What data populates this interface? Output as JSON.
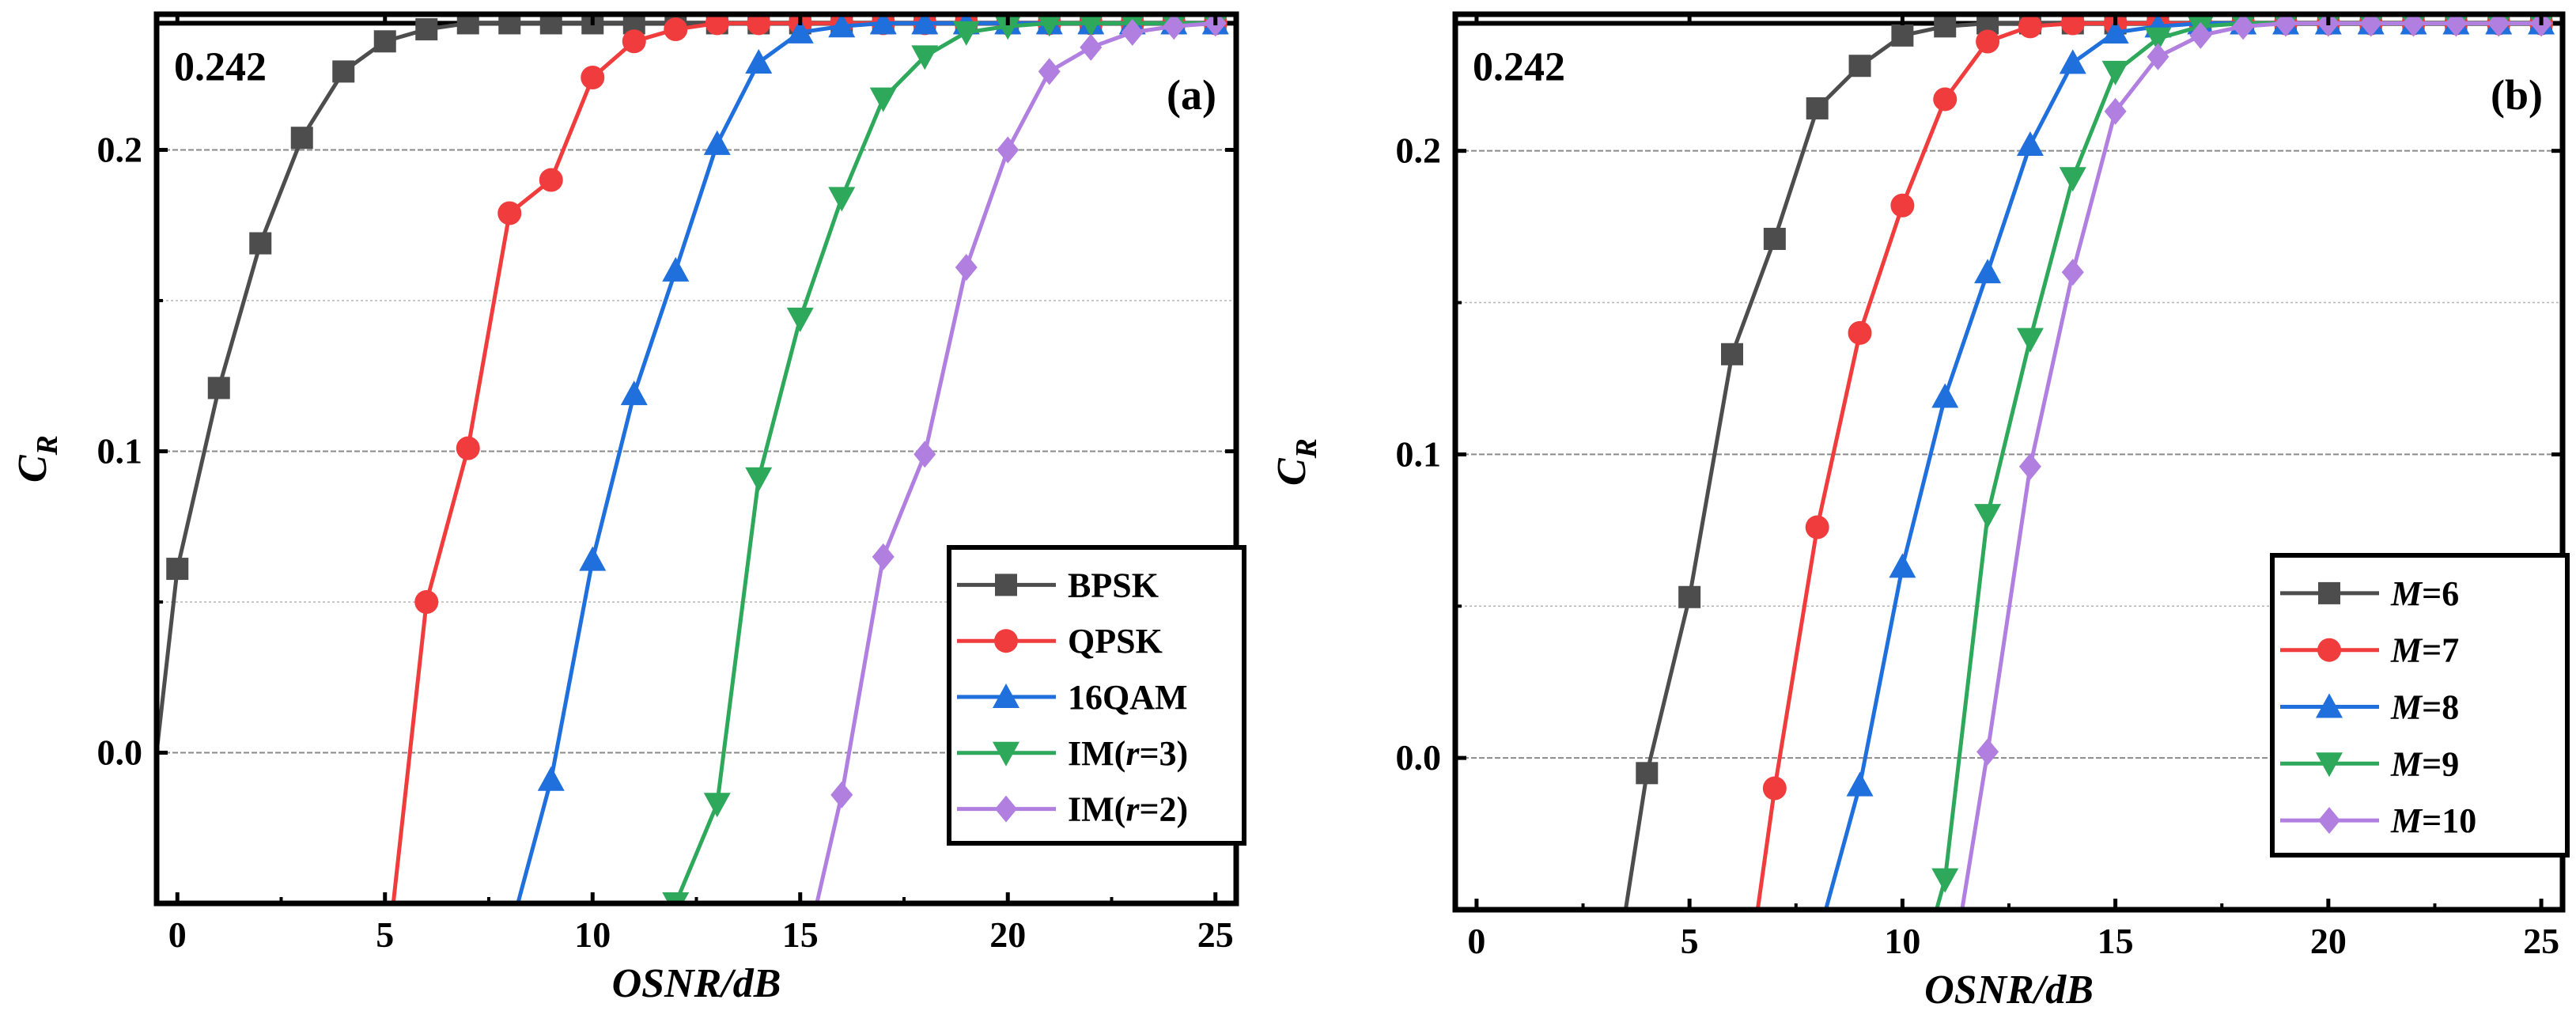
{
  "chart_data": [
    {
      "type": "line",
      "panel_label": "(a)",
      "xlabel": "OSNR/dB",
      "ylabel_main": "C",
      "ylabel_sub": "R",
      "xlim": [
        -0.5,
        25.5
      ],
      "ylim": [
        -0.05,
        0.245
      ],
      "xticks": [
        0,
        5,
        10,
        15,
        20,
        25
      ],
      "yticks": [
        0.0,
        0.1,
        0.2
      ],
      "ytick_labels": [
        "0.0",
        "0.1",
        "0.2"
      ],
      "xtick_labels": [
        "0",
        "5",
        "10",
        "15",
        "20",
        "25"
      ],
      "reference_line": {
        "y": 0.242,
        "label": "0.242"
      },
      "legend_position": "bottom-right",
      "series": [
        {
          "name": "BPSK",
          "name_parts": [
            "BPSK"
          ],
          "color": "#4d4d4d",
          "marker": "square",
          "x": [
            -0.5,
            0,
            1,
            2,
            3,
            4,
            5,
            6,
            7,
            8,
            9,
            10,
            11,
            12,
            13,
            14,
            15,
            16,
            17,
            18,
            19,
            20,
            21,
            22,
            23,
            24,
            25
          ],
          "y": [
            0.0,
            0.061,
            0.121,
            0.169,
            0.204,
            0.226,
            0.236,
            0.24,
            0.242,
            0.242,
            0.242,
            0.242,
            0.242,
            0.242,
            0.242,
            0.242,
            0.242,
            0.242,
            0.242,
            0.242,
            0.242,
            0.242,
            0.242,
            0.242,
            0.242,
            0.242,
            0.242
          ],
          "markers_from": 1
        },
        {
          "name": "QPSK",
          "name_parts": [
            "QPSK"
          ],
          "color": "#f03c3c",
          "marker": "circle",
          "x": [
            5.2,
            6,
            7,
            8,
            9,
            10,
            11,
            12,
            13,
            14,
            15,
            16,
            17,
            18,
            19,
            20,
            21,
            22,
            23,
            24,
            25
          ],
          "y": [
            -0.05,
            0.05,
            0.101,
            0.179,
            0.19,
            0.224,
            0.236,
            0.24,
            0.242,
            0.242,
            0.242,
            0.242,
            0.242,
            0.242,
            0.242,
            0.242,
            0.242,
            0.242,
            0.242,
            0.242,
            0.242
          ],
          "markers_from": 1
        },
        {
          "name": "16QAM",
          "name_parts": [
            "16QAM"
          ],
          "color": "#1f6fdc",
          "marker": "triangle-up",
          "x": [
            8.2,
            9,
            10,
            11,
            12,
            13,
            14,
            15,
            16,
            17,
            18,
            19,
            20,
            21,
            22,
            23,
            24,
            25
          ],
          "y": [
            -0.05,
            -0.009,
            0.064,
            0.119,
            0.16,
            0.202,
            0.229,
            0.239,
            0.241,
            0.242,
            0.242,
            0.242,
            0.242,
            0.242,
            0.242,
            0.242,
            0.242,
            0.242
          ],
          "markers_from": 1
        },
        {
          "name": "IM(r=3)",
          "name_parts": [
            "IM(",
            "r",
            "=3)"
          ],
          "color": "#2ea85a",
          "marker": "triangle-down",
          "x": [
            12,
            13,
            14,
            15,
            16,
            17,
            18,
            19,
            20,
            21,
            22,
            23,
            24,
            25
          ],
          "y": [
            -0.05,
            -0.017,
            0.091,
            0.144,
            0.184,
            0.217,
            0.231,
            0.239,
            0.241,
            0.242,
            0.242,
            0.242,
            0.242,
            0.242
          ],
          "markers_from": 0
        },
        {
          "name": "IM(r=2)",
          "name_parts": [
            "IM(",
            "r",
            "=2)"
          ],
          "color": "#b07fe0",
          "marker": "diamond",
          "x": [
            15.4,
            16,
            17,
            18,
            19,
            20,
            21,
            22,
            23,
            24,
            25
          ],
          "y": [
            -0.05,
            -0.014,
            0.065,
            0.099,
            0.161,
            0.2,
            0.226,
            0.234,
            0.239,
            0.241,
            0.242
          ],
          "markers_from": 1
        }
      ]
    },
    {
      "type": "line",
      "panel_label": "(b)",
      "xlabel": "OSNR/dB",
      "ylabel_main": "C",
      "ylabel_sub": "R",
      "xlim": [
        -0.5,
        25.5
      ],
      "ylim": [
        -0.05,
        0.245
      ],
      "xticks": [
        0,
        5,
        10,
        15,
        20,
        25
      ],
      "yticks": [
        0.0,
        0.1,
        0.2
      ],
      "ytick_labels": [
        "0.0",
        "0.1",
        "0.2"
      ],
      "xtick_labels": [
        "0",
        "5",
        "10",
        "15",
        "20",
        "25"
      ],
      "reference_line": {
        "y": 0.242,
        "label": "0.242"
      },
      "legend_position": "bottom-right",
      "series": [
        {
          "name": "M=6",
          "name_parts": [
            "",
            "M",
            "=6"
          ],
          "color": "#4d4d4d",
          "marker": "square",
          "x": [
            3.5,
            4,
            5,
            6,
            7,
            8,
            9,
            10,
            11,
            12,
            13,
            14,
            15,
            16,
            17,
            18,
            19,
            20,
            21,
            22,
            23,
            24,
            25
          ],
          "y": [
            -0.05,
            -0.005,
            0.053,
            0.133,
            0.171,
            0.214,
            0.228,
            0.238,
            0.241,
            0.242,
            0.242,
            0.242,
            0.242,
            0.242,
            0.242,
            0.242,
            0.242,
            0.242,
            0.242,
            0.242,
            0.242,
            0.242,
            0.242
          ],
          "markers_from": 1
        },
        {
          "name": "M=7",
          "name_parts": [
            "",
            "M",
            "=7"
          ],
          "color": "#f03c3c",
          "marker": "circle",
          "x": [
            6.6,
            7,
            8,
            9,
            10,
            11,
            12,
            13,
            14,
            15,
            16,
            17,
            18,
            19,
            20,
            21,
            22,
            23,
            24,
            25
          ],
          "y": [
            -0.05,
            -0.01,
            0.076,
            0.14,
            0.182,
            0.217,
            0.236,
            0.241,
            0.242,
            0.242,
            0.242,
            0.242,
            0.242,
            0.242,
            0.242,
            0.242,
            0.242,
            0.242,
            0.242,
            0.242
          ],
          "markers_from": 1
        },
        {
          "name": "M=8",
          "name_parts": [
            "",
            "M",
            "=8"
          ],
          "color": "#1f6fdc",
          "marker": "triangle-up",
          "x": [
            8.2,
            9,
            10,
            11,
            12,
            13,
            14,
            15,
            16,
            17,
            18,
            19,
            20,
            21,
            22,
            23,
            24,
            25
          ],
          "y": [
            -0.05,
            -0.009,
            0.063,
            0.119,
            0.16,
            0.202,
            0.229,
            0.239,
            0.241,
            0.242,
            0.242,
            0.242,
            0.242,
            0.242,
            0.242,
            0.242,
            0.242,
            0.242
          ],
          "markers_from": 1
        },
        {
          "name": "M=9",
          "name_parts": [
            "",
            "M",
            "=9"
          ],
          "color": "#2ea85a",
          "marker": "triangle-down",
          "x": [
            10.8,
            11,
            12,
            13,
            14,
            15,
            16,
            17,
            18,
            19,
            20,
            21,
            22,
            23,
            24,
            25
          ],
          "y": [
            -0.05,
            -0.04,
            0.08,
            0.138,
            0.191,
            0.226,
            0.237,
            0.241,
            0.242,
            0.242,
            0.242,
            0.242,
            0.242,
            0.242,
            0.242,
            0.242
          ],
          "markers_from": 1
        },
        {
          "name": "M=10",
          "name_parts": [
            "",
            "M",
            "=10"
          ],
          "color": "#b07fe0",
          "marker": "diamond",
          "x": [
            11.4,
            12,
            13,
            14,
            15,
            16,
            17,
            18,
            19,
            20,
            21,
            22,
            23,
            24,
            25
          ],
          "y": [
            -0.05,
            0.002,
            0.096,
            0.16,
            0.213,
            0.231,
            0.238,
            0.241,
            0.242,
            0.242,
            0.242,
            0.242,
            0.242,
            0.242,
            0.242
          ],
          "markers_from": 1
        }
      ]
    }
  ]
}
